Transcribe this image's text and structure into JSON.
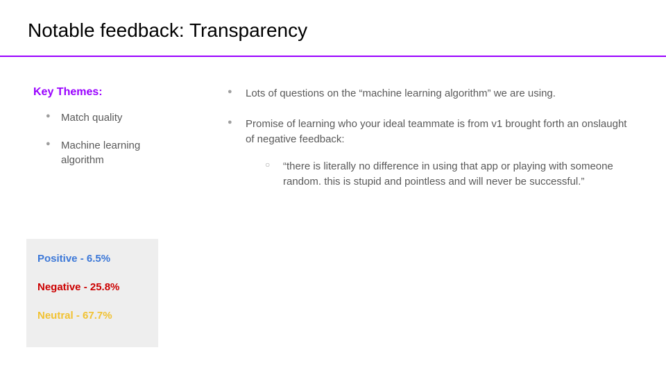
{
  "title": "Notable feedback: Transparency",
  "accent_color": "#9900ff",
  "body_text_color": "#595959",
  "bullet_marker_color": "#9e9e9e",
  "left": {
    "heading": "Key Themes:",
    "heading_color": "#9900ff",
    "themes": [
      "Match quality",
      "Machine learning algorithm"
    ]
  },
  "stats": {
    "background_color": "#eeeeee",
    "items": [
      {
        "label": "Positive - 6.5%",
        "color": "#3c78d8"
      },
      {
        "label": "Negative - 25.8%",
        "color": "#cc0000"
      },
      {
        "label": "Neutral - 67.7%",
        "color": "#f1c232"
      }
    ]
  },
  "right": {
    "bullets": [
      {
        "text": "Lots of questions on the “machine learning algorithm” we are using."
      },
      {
        "text": "Promise of learning who your ideal teammate is from v1 brought forth an onslaught of negative feedback:",
        "sub": [
          "“there is literally no difference in using that app or playing with someone random. this is stupid and pointless and will never be successful.”"
        ]
      }
    ]
  }
}
